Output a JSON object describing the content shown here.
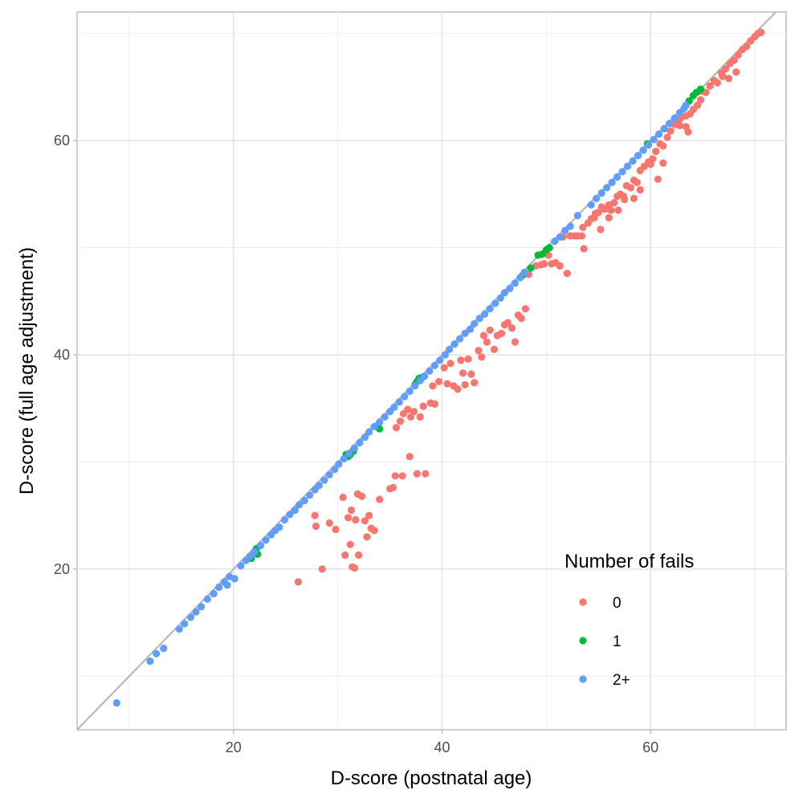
{
  "chart_data": {
    "type": "scatter",
    "xlabel": "D-score (postnatal age)",
    "ylabel": "D-score (full age adjustment)",
    "xlim": [
      5,
      73
    ],
    "ylim": [
      5,
      72
    ],
    "xticks": [
      20,
      40,
      60
    ],
    "yticks": [
      20,
      40,
      60
    ],
    "grid": true,
    "reference_line": {
      "type": "identity",
      "color": "#b3b3b3"
    },
    "legend": {
      "title": "Number of fails",
      "placement": "bottom-right inside"
    },
    "series": [
      {
        "name": "0",
        "color": "#F8766D",
        "points": [
          [
            26.2,
            18.8
          ],
          [
            27.8,
            25.0
          ],
          [
            27.9,
            24.0
          ],
          [
            28.5,
            20.0
          ],
          [
            29.2,
            24.3
          ],
          [
            29.8,
            23.7
          ],
          [
            30.5,
            26.7
          ],
          [
            30.7,
            21.3
          ],
          [
            31.0,
            24.8
          ],
          [
            31.2,
            22.3
          ],
          [
            31.3,
            25.5
          ],
          [
            31.4,
            20.2
          ],
          [
            31.6,
            20.1
          ],
          [
            31.7,
            24.6
          ],
          [
            31.9,
            27.0
          ],
          [
            32.0,
            21.3
          ],
          [
            32.3,
            26.8
          ],
          [
            32.6,
            24.5
          ],
          [
            32.8,
            23.0
          ],
          [
            33.0,
            25.0
          ],
          [
            33.2,
            23.8
          ],
          [
            33.5,
            23.6
          ],
          [
            34.0,
            26.5
          ],
          [
            35.0,
            27.5
          ],
          [
            35.3,
            27.6
          ],
          [
            35.5,
            28.7
          ],
          [
            35.6,
            33.2
          ],
          [
            36.0,
            33.8
          ],
          [
            36.2,
            28.7
          ],
          [
            36.3,
            34.5
          ],
          [
            36.7,
            34.9
          ],
          [
            36.9,
            30.5
          ],
          [
            37.0,
            34.2
          ],
          [
            37.3,
            34.7
          ],
          [
            37.6,
            28.9
          ],
          [
            37.9,
            34.2
          ],
          [
            38.4,
            28.9
          ],
          [
            38.2,
            35.2
          ],
          [
            38.9,
            35.5
          ],
          [
            39.1,
            37.1
          ],
          [
            39.3,
            35.4
          ],
          [
            39.7,
            37.5
          ],
          [
            40.2,
            38.8
          ],
          [
            40.5,
            37.3
          ],
          [
            40.8,
            39.2
          ],
          [
            41.1,
            37.1
          ],
          [
            41.5,
            36.8
          ],
          [
            41.8,
            39.5
          ],
          [
            42.0,
            38.3
          ],
          [
            42.2,
            37.2
          ],
          [
            42.5,
            39.6
          ],
          [
            42.8,
            38.2
          ],
          [
            43.1,
            37.4
          ],
          [
            43.5,
            40.4
          ],
          [
            43.8,
            39.8
          ],
          [
            44.0,
            41.8
          ],
          [
            44.3,
            41.2
          ],
          [
            44.6,
            42.3
          ],
          [
            45.0,
            40.5
          ],
          [
            45.3,
            41.8
          ],
          [
            45.7,
            42.0
          ],
          [
            46.0,
            42.8
          ],
          [
            46.3,
            43.0
          ],
          [
            46.7,
            42.5
          ],
          [
            47.0,
            41.2
          ],
          [
            47.3,
            43.7
          ],
          [
            47.6,
            43.4
          ],
          [
            48.0,
            44.3
          ],
          [
            48.3,
            47.5
          ],
          [
            49.0,
            48.3
          ],
          [
            49.5,
            48.4
          ],
          [
            49.8,
            48.5
          ],
          [
            50.2,
            49.3
          ],
          [
            50.5,
            48.5
          ],
          [
            50.9,
            48.6
          ],
          [
            51.3,
            48.3
          ],
          [
            51.6,
            51.0
          ],
          [
            52.0,
            47.6
          ],
          [
            52.3,
            51.1
          ],
          [
            52.7,
            51.1
          ],
          [
            53.0,
            51.1
          ],
          [
            53.4,
            51.1
          ],
          [
            53.6,
            49.9
          ],
          [
            54.0,
            52.3
          ],
          [
            54.3,
            52.7
          ],
          [
            54.7,
            53.2
          ],
          [
            55.0,
            53.3
          ],
          [
            55.3,
            53.8
          ],
          [
            55.6,
            53.6
          ],
          [
            56.0,
            54.0
          ],
          [
            56.2,
            53.5
          ],
          [
            56.5,
            54.2
          ],
          [
            56.8,
            54.8
          ],
          [
            57.1,
            55.0
          ],
          [
            57.4,
            54.8
          ],
          [
            57.7,
            55.8
          ],
          [
            58.1,
            55.6
          ],
          [
            58.4,
            56.3
          ],
          [
            58.7,
            56.1
          ],
          [
            59.0,
            57.2
          ],
          [
            59.4,
            57.6
          ],
          [
            59.8,
            58.0
          ],
          [
            60.2,
            58.3
          ],
          [
            60.5,
            59.0
          ],
          [
            60.9,
            59.7
          ],
          [
            61.2,
            59.5
          ],
          [
            61.6,
            60.3
          ],
          [
            61.9,
            60.9
          ],
          [
            62.3,
            61.5
          ],
          [
            62.7,
            61.9
          ],
          [
            63.0,
            62.2
          ],
          [
            63.4,
            62.3
          ],
          [
            63.8,
            62.5
          ],
          [
            64.1,
            62.9
          ],
          [
            64.5,
            63.3
          ],
          [
            64.9,
            64.6
          ],
          [
            65.3,
            64.5
          ],
          [
            65.7,
            65.1
          ],
          [
            66.1,
            65.6
          ],
          [
            66.4,
            65.4
          ],
          [
            66.8,
            66.3
          ],
          [
            67.2,
            66.7
          ],
          [
            67.6,
            67.2
          ],
          [
            68.0,
            67.5
          ],
          [
            68.4,
            68.0
          ],
          [
            68.8,
            68.5
          ],
          [
            69.2,
            68.8
          ],
          [
            69.6,
            69.3
          ],
          [
            70.0,
            69.7
          ],
          [
            70.3,
            70.0
          ],
          [
            70.6,
            70.1
          ],
          [
            53.5,
            51.9
          ],
          [
            54.6,
            52.8
          ],
          [
            55.2,
            51.7
          ],
          [
            56.0,
            52.8
          ],
          [
            56.9,
            53.5
          ],
          [
            57.5,
            54.5
          ],
          [
            58.4,
            54.6
          ],
          [
            59.0,
            55.4
          ],
          [
            60.0,
            57.8
          ],
          [
            60.7,
            56.4
          ],
          [
            61.2,
            57.9
          ],
          [
            62.8,
            61.4
          ],
          [
            63.4,
            61.3
          ],
          [
            63.6,
            60.8
          ],
          [
            64.8,
            63.8
          ],
          [
            66.9,
            66.0
          ],
          [
            67.5,
            65.8
          ],
          [
            68.2,
            66.4
          ]
        ]
      },
      {
        "name": "1",
        "color": "#00BA38",
        "points": [
          [
            21.7,
            21.0
          ],
          [
            22.0,
            21.6
          ],
          [
            22.2,
            21.9
          ],
          [
            22.3,
            21.4
          ],
          [
            30.8,
            30.7
          ],
          [
            31.0,
            30.5
          ],
          [
            31.2,
            30.7
          ],
          [
            31.5,
            31.0
          ],
          [
            34.0,
            33.1
          ],
          [
            37.4,
            37.2
          ],
          [
            37.6,
            37.5
          ],
          [
            37.8,
            37.8
          ],
          [
            38.1,
            37.9
          ],
          [
            38.3,
            38.0
          ],
          [
            47.7,
            47.4
          ],
          [
            48.5,
            48.1
          ],
          [
            49.2,
            49.3
          ],
          [
            49.6,
            49.4
          ],
          [
            50.0,
            49.8
          ],
          [
            50.3,
            50.0
          ],
          [
            59.7,
            59.7
          ],
          [
            63.7,
            63.7
          ],
          [
            64.1,
            64.2
          ],
          [
            64.4,
            64.5
          ],
          [
            64.8,
            64.8
          ]
        ]
      },
      {
        "name": "2+",
        "color": "#619CFF",
        "points": [
          [
            8.8,
            7.5
          ],
          [
            12.0,
            11.4
          ],
          [
            12.6,
            12.1
          ],
          [
            13.3,
            12.6
          ],
          [
            14.8,
            14.4
          ],
          [
            15.3,
            14.9
          ],
          [
            15.9,
            15.5
          ],
          [
            16.4,
            16.0
          ],
          [
            16.9,
            16.5
          ],
          [
            17.5,
            17.2
          ],
          [
            18.1,
            17.7
          ],
          [
            18.6,
            18.3
          ],
          [
            19.1,
            18.8
          ],
          [
            19.6,
            19.3
          ],
          [
            20.1,
            19.1
          ],
          [
            19.4,
            18.5
          ],
          [
            20.7,
            20.3
          ],
          [
            21.2,
            20.8
          ],
          [
            21.6,
            21.2
          ],
          [
            22.0,
            21.6
          ],
          [
            22.6,
            22.2
          ],
          [
            23.1,
            22.7
          ],
          [
            23.6,
            23.2
          ],
          [
            24.0,
            23.6
          ],
          [
            24.4,
            23.9
          ],
          [
            24.9,
            24.6
          ],
          [
            25.4,
            25.1
          ],
          [
            25.9,
            25.5
          ],
          [
            26.3,
            26.0
          ],
          [
            26.8,
            26.4
          ],
          [
            27.3,
            26.9
          ],
          [
            27.8,
            27.4
          ],
          [
            28.2,
            27.8
          ],
          [
            28.7,
            28.3
          ],
          [
            29.2,
            28.8
          ],
          [
            29.7,
            29.3
          ],
          [
            30.1,
            29.8
          ],
          [
            30.6,
            30.3
          ],
          [
            31.1,
            30.8
          ],
          [
            31.6,
            31.3
          ],
          [
            32.1,
            31.8
          ],
          [
            32.6,
            32.3
          ],
          [
            33.0,
            32.8
          ],
          [
            33.5,
            33.3
          ],
          [
            34.0,
            33.7
          ],
          [
            34.5,
            34.2
          ],
          [
            35.0,
            34.7
          ],
          [
            35.4,
            35.1
          ],
          [
            35.9,
            35.6
          ],
          [
            36.4,
            36.1
          ],
          [
            36.9,
            36.6
          ],
          [
            37.4,
            37.1
          ],
          [
            37.9,
            37.6
          ],
          [
            38.3,
            38.0
          ],
          [
            38.8,
            38.5
          ],
          [
            39.3,
            39.0
          ],
          [
            39.8,
            39.5
          ],
          [
            40.3,
            40.0
          ],
          [
            40.7,
            40.5
          ],
          [
            41.2,
            41.0
          ],
          [
            41.7,
            41.5
          ],
          [
            42.2,
            42.0
          ],
          [
            42.7,
            42.4
          ],
          [
            43.1,
            42.9
          ],
          [
            43.6,
            43.4
          ],
          [
            44.1,
            43.8
          ],
          [
            44.6,
            44.3
          ],
          [
            45.1,
            44.8
          ],
          [
            45.6,
            45.3
          ],
          [
            46.0,
            45.8
          ],
          [
            46.5,
            46.2
          ],
          [
            47.0,
            46.7
          ],
          [
            47.5,
            47.2
          ],
          [
            47.9,
            47.7
          ],
          [
            50.8,
            50.6
          ],
          [
            51.3,
            51.0
          ],
          [
            51.8,
            51.6
          ],
          [
            52.3,
            52.0
          ],
          [
            53.0,
            53.0
          ],
          [
            54.3,
            54.0
          ],
          [
            54.8,
            54.6
          ],
          [
            55.3,
            55.1
          ],
          [
            55.8,
            55.6
          ],
          [
            56.3,
            56.1
          ],
          [
            56.8,
            56.6
          ],
          [
            57.3,
            57.1
          ],
          [
            57.8,
            57.6
          ],
          [
            58.3,
            58.1
          ],
          [
            58.8,
            58.6
          ],
          [
            59.3,
            59.1
          ],
          [
            59.8,
            59.6
          ],
          [
            60.3,
            60.1
          ],
          [
            60.8,
            60.6
          ],
          [
            61.3,
            61.1
          ],
          [
            61.8,
            61.6
          ],
          [
            62.3,
            62.1
          ],
          [
            62.8,
            62.6
          ],
          [
            63.2,
            63.0
          ],
          [
            63.4,
            63.3
          ]
        ]
      }
    ]
  }
}
